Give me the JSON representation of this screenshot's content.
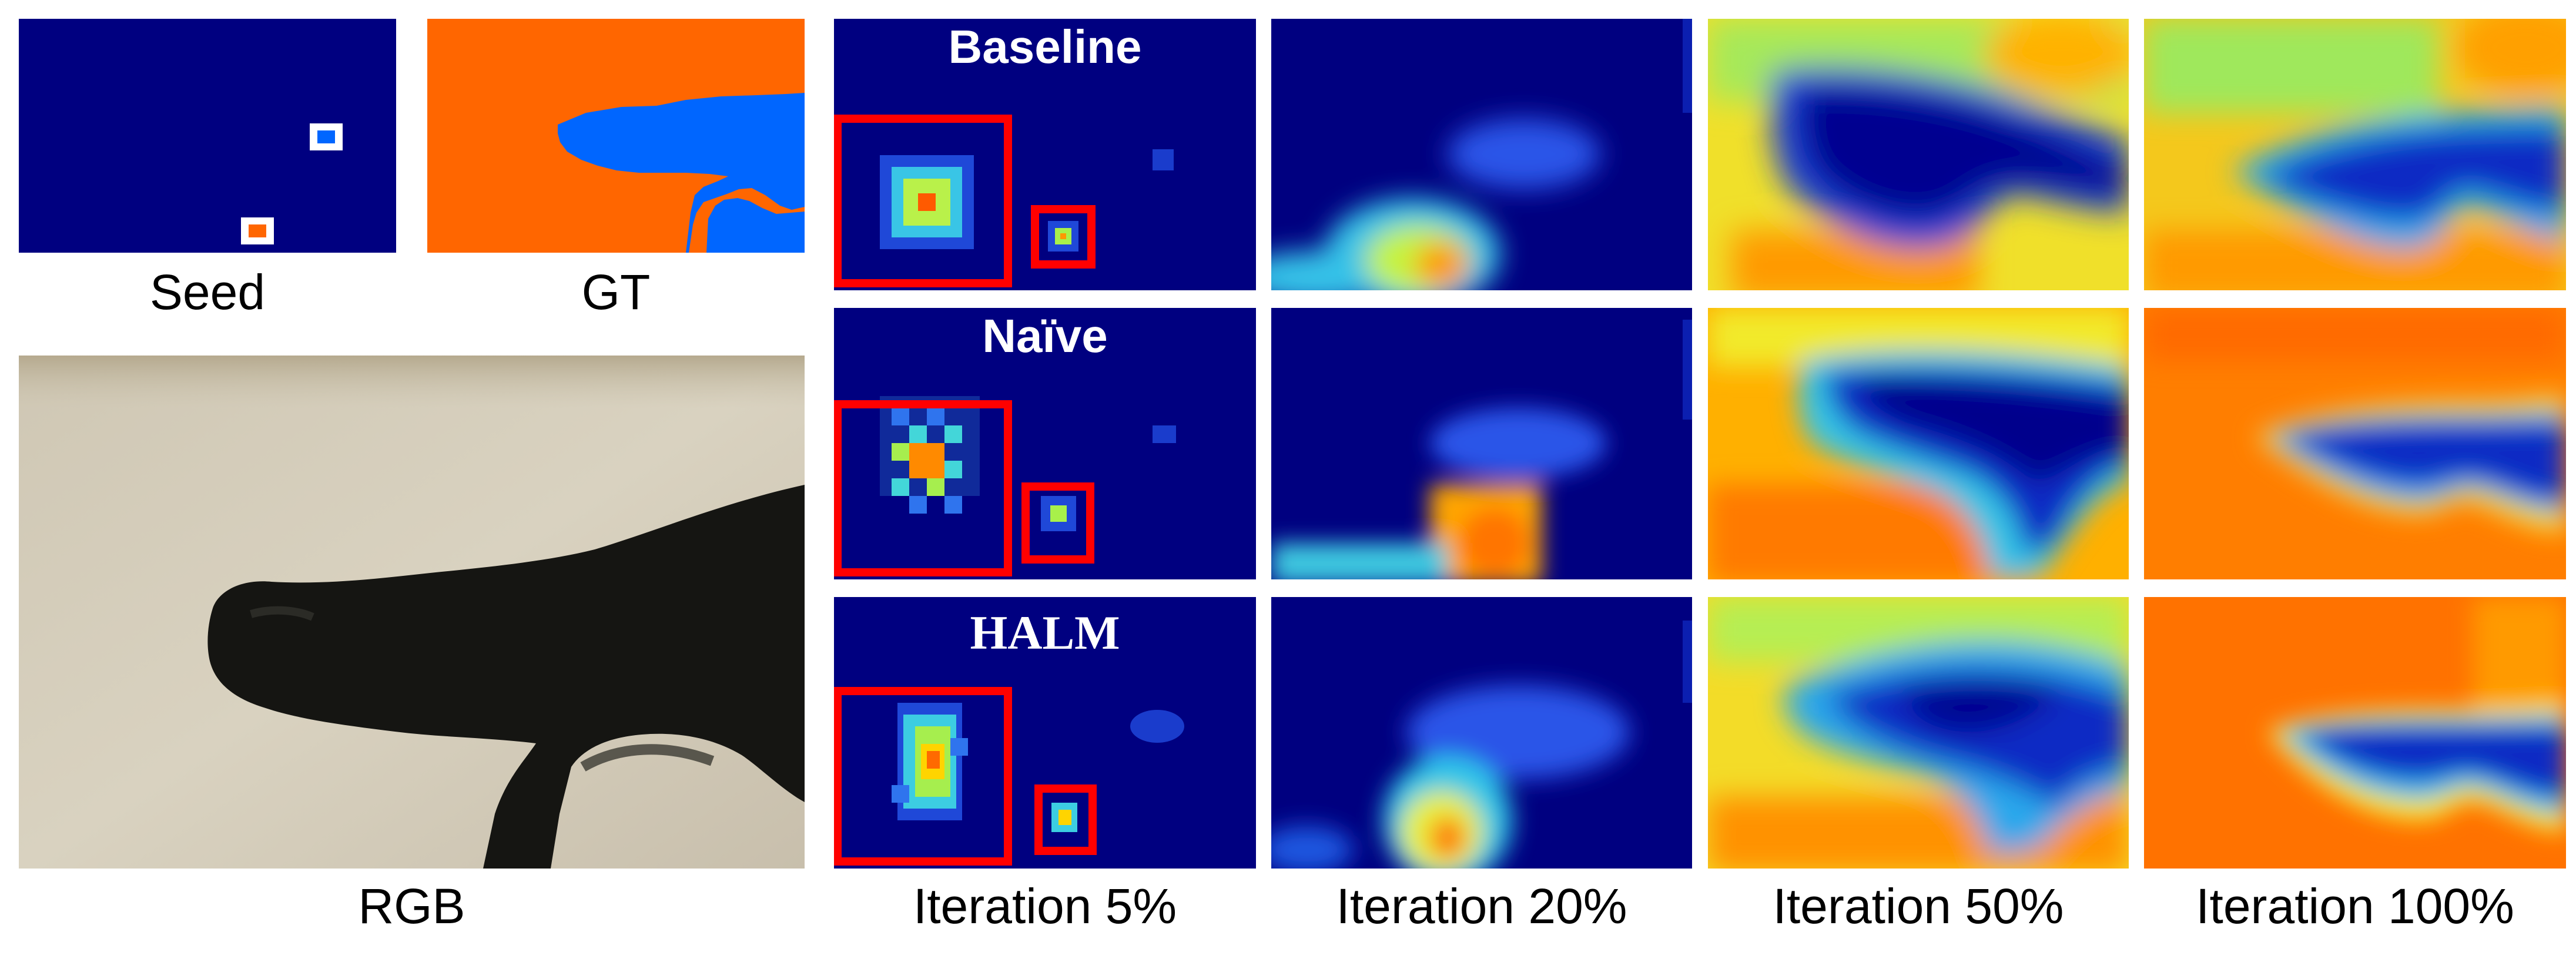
{
  "figure": {
    "inputs": {
      "seed_caption": "Seed",
      "gt_caption": "GT",
      "rgb_caption": "RGB"
    },
    "rows": [
      {
        "label": "Baseline"
      },
      {
        "label": "Naïve"
      },
      {
        "label": "HALM"
      }
    ],
    "columns": [
      {
        "caption": "Iteration 5%"
      },
      {
        "caption": "Iteration 20%"
      },
      {
        "caption": "Iteration 50%"
      },
      {
        "caption": "Iteration 100%"
      }
    ],
    "colors": {
      "background_label": "#ff6600",
      "foreground_label": "#0066ff",
      "seed_background": "#000080",
      "zoom_box": "#ff0000"
    }
  }
}
